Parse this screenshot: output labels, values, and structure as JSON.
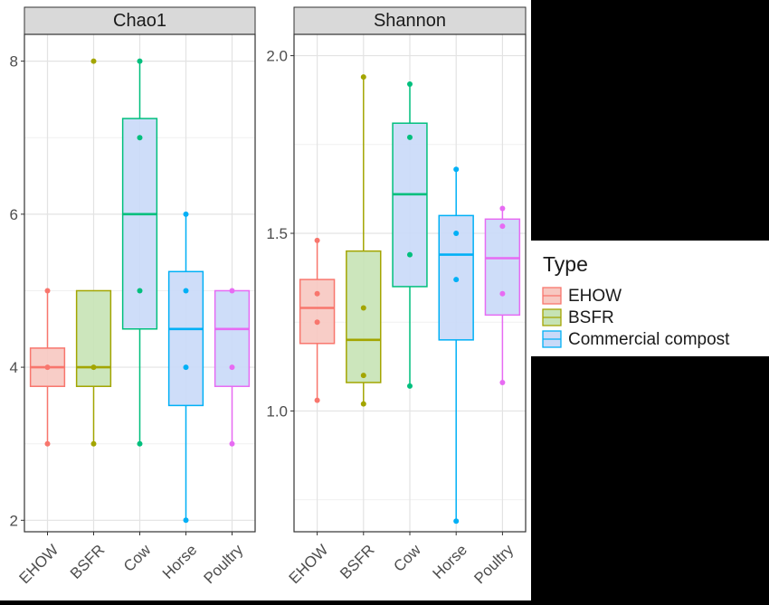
{
  "chart_data": [
    {
      "type": "box",
      "title": "Chao1",
      "categories": [
        "EHOW",
        "BSFR",
        "Cow",
        "Horse",
        "Poultry"
      ],
      "ylim": [
        1.85,
        8.35
      ],
      "yticks": [
        2,
        4,
        6,
        8
      ],
      "grid": true,
      "boxes": [
        {
          "category": "EHOW",
          "group": "EHOW",
          "lower_whisker": 3,
          "q1": 3.75,
          "median": 4,
          "q3": 4.25,
          "upper_whisker": 5,
          "points": [
            5,
            4,
            3
          ]
        },
        {
          "category": "BSFR",
          "group": "BSFR",
          "lower_whisker": 3,
          "q1": 3.75,
          "median": 4,
          "q3": 5,
          "upper_whisker": 5,
          "points": [
            8,
            4,
            3
          ]
        },
        {
          "category": "Cow",
          "group": "Commercial compost",
          "lower_whisker": 3,
          "q1": 4.5,
          "median": 6,
          "q3": 7.25,
          "upper_whisker": 8,
          "points": [
            8,
            7,
            5,
            3
          ]
        },
        {
          "category": "Horse",
          "group": "Commercial compost",
          "lower_whisker": 2,
          "q1": 3.5,
          "median": 4.5,
          "q3": 5.25,
          "upper_whisker": 6,
          "points": [
            6,
            5,
            4,
            2
          ]
        },
        {
          "category": "Poultry",
          "group": "Commercial compost",
          "lower_whisker": 3,
          "q1": 3.75,
          "median": 4.5,
          "q3": 5,
          "upper_whisker": 5,
          "points": [
            5,
            4,
            3
          ]
        }
      ]
    },
    {
      "type": "box",
      "title": "Shannon",
      "categories": [
        "EHOW",
        "BSFR",
        "Cow",
        "Horse",
        "Poultry"
      ],
      "ylim": [
        0.66,
        2.06
      ],
      "yticks": [
        1.0,
        1.5,
        2.0
      ],
      "grid": true,
      "boxes": [
        {
          "category": "EHOW",
          "group": "EHOW",
          "lower_whisker": 1.03,
          "q1": 1.19,
          "median": 1.29,
          "q3": 1.37,
          "upper_whisker": 1.48,
          "points": [
            1.48,
            1.33,
            1.25,
            1.03
          ]
        },
        {
          "category": "BSFR",
          "group": "BSFR",
          "lower_whisker": 1.02,
          "q1": 1.08,
          "median": 1.2,
          "q3": 1.45,
          "upper_whisker": 1.94,
          "points": [
            1.94,
            1.29,
            1.1,
            1.02
          ]
        },
        {
          "category": "Cow",
          "group": "Commercial compost",
          "lower_whisker": 1.07,
          "q1": 1.35,
          "median": 1.61,
          "q3": 1.81,
          "upper_whisker": 1.92,
          "points": [
            1.92,
            1.77,
            1.44,
            1.07
          ]
        },
        {
          "category": "Horse",
          "group": "Commercial compost",
          "lower_whisker": 0.69,
          "q1": 1.2,
          "median": 1.44,
          "q3": 1.55,
          "upper_whisker": 1.68,
          "points": [
            1.68,
            1.5,
            1.37,
            0.69
          ]
        },
        {
          "category": "Poultry",
          "group": "Commercial compost",
          "lower_whisker": 1.08,
          "q1": 1.27,
          "median": 1.43,
          "q3": 1.54,
          "upper_whisker": 1.57,
          "points": [
            1.57,
            1.52,
            1.33,
            1.08
          ]
        }
      ]
    }
  ],
  "legend": {
    "title": "Type",
    "placement": "right",
    "items": [
      {
        "label": "EHOW",
        "color": "#F8766D",
        "fill": "#F7C8C1"
      },
      {
        "label": "BSFR",
        "color": "#A3A500",
        "fill": "#C6E3B5"
      },
      {
        "label": "Commercial compost",
        "color": "#00B0F6",
        "fill": "#C9D9F8"
      }
    ]
  },
  "category_colors": {
    "EHOW": "#F8766D",
    "BSFR": "#A3A500",
    "Cow": "#00BF7D",
    "Horse": "#00B0F6",
    "Poultry": "#E76BF3"
  },
  "group_fills": {
    "EHOW": "#F7C8C1",
    "BSFR": "#C6E3B5",
    "Commercial compost": "#C9D9F8"
  }
}
